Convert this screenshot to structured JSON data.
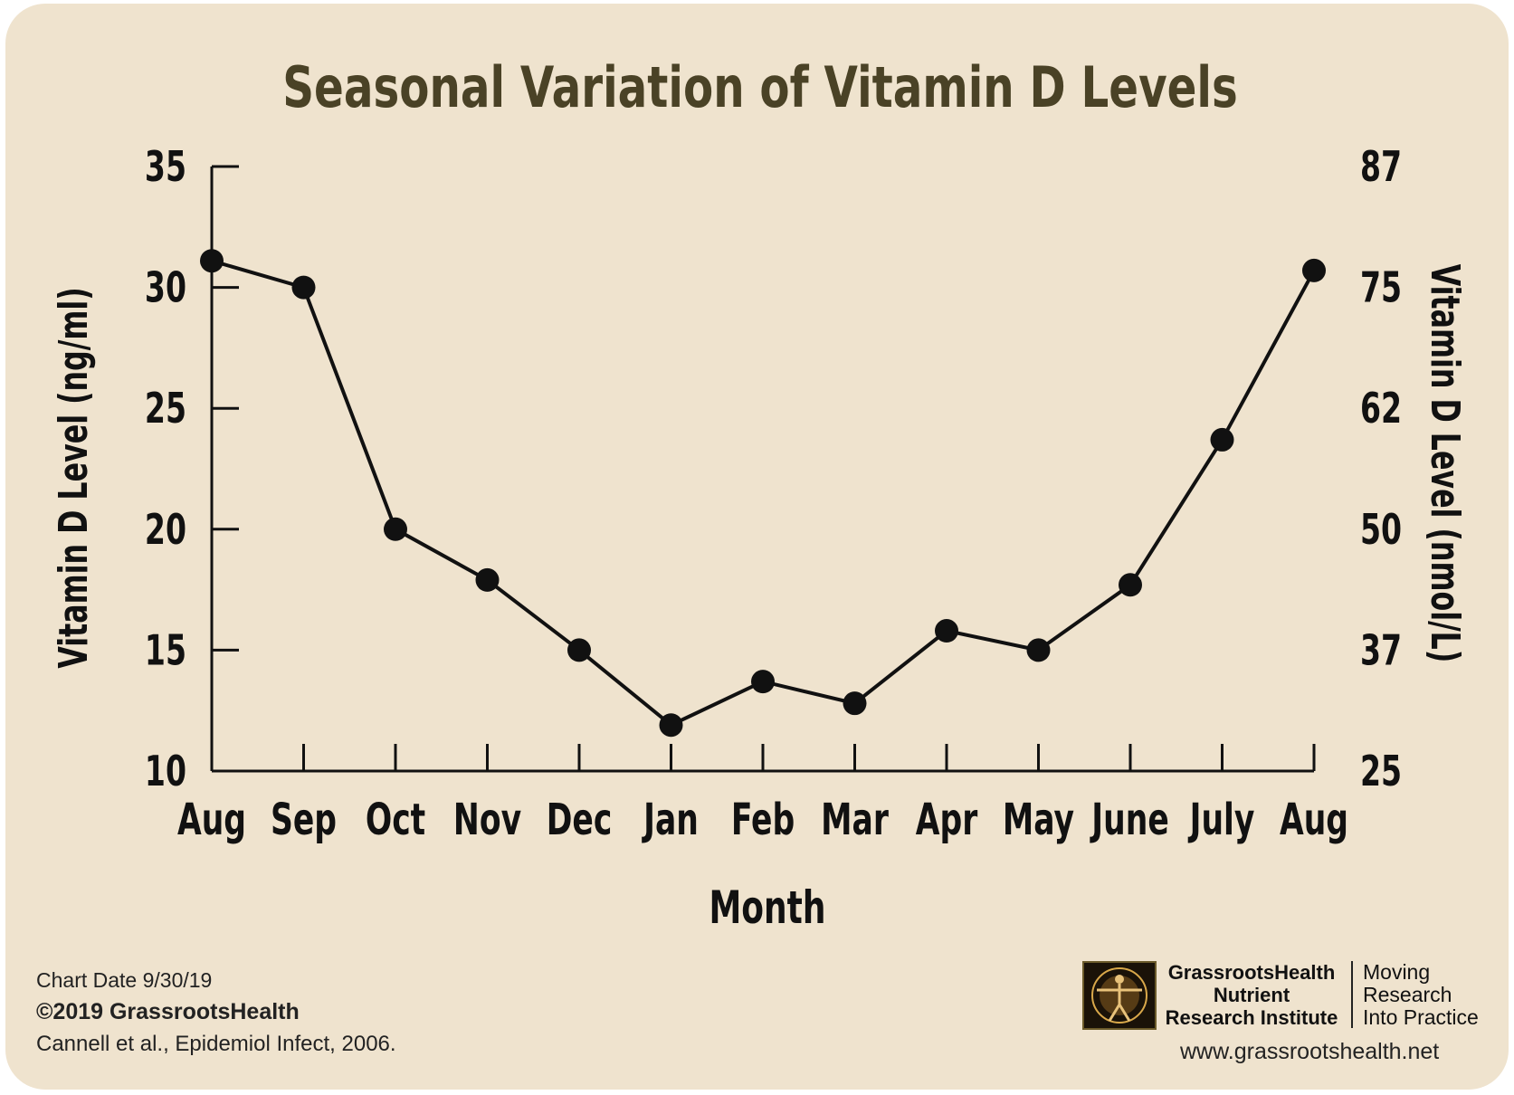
{
  "chart_data": {
    "type": "line",
    "title": "Seasonal Variation of Vitamin D Levels",
    "xlabel": "Month",
    "ylabel": "Vitamin D Level (ng/ml)",
    "y2label": "Vitamin D Level (nmol/L)",
    "categories": [
      "Aug",
      "Sep",
      "Oct",
      "Nov",
      "Dec",
      "Jan",
      "Feb",
      "Mar",
      "Apr",
      "May",
      "June",
      "July",
      "Aug"
    ],
    "series": [
      {
        "values": [
          31.1,
          30.0,
          20.0,
          17.9,
          15.0,
          11.9,
          13.7,
          12.8,
          15.8,
          15.0,
          17.7,
          23.7,
          30.7
        ]
      }
    ],
    "ylim": [
      10,
      35
    ],
    "yticks": [
      "10",
      "15",
      "20",
      "25",
      "30",
      "35"
    ],
    "y2ticks": [
      "25",
      "37",
      "50",
      "62",
      "75",
      "87"
    ],
    "grid": false,
    "marker_color": "#111111",
    "line_color": "#111111",
    "background_color": "#efe3ce"
  },
  "footer": {
    "chart_date": "Chart Date 9/30/19",
    "copyright": "©2019 GrassrootsHealth",
    "citation": "Cannell et al., Epidemiol Infect, 2006.",
    "org_line1": "GrassrootsHealth",
    "org_line2": "Nutrient",
    "org_line3": "Research Institute",
    "tagline1": "Moving",
    "tagline2": "Research",
    "tagline3": "Into Practice",
    "website": "www.grassrootshealth.net",
    "logo_icon": "vitruvian-man-icon"
  }
}
